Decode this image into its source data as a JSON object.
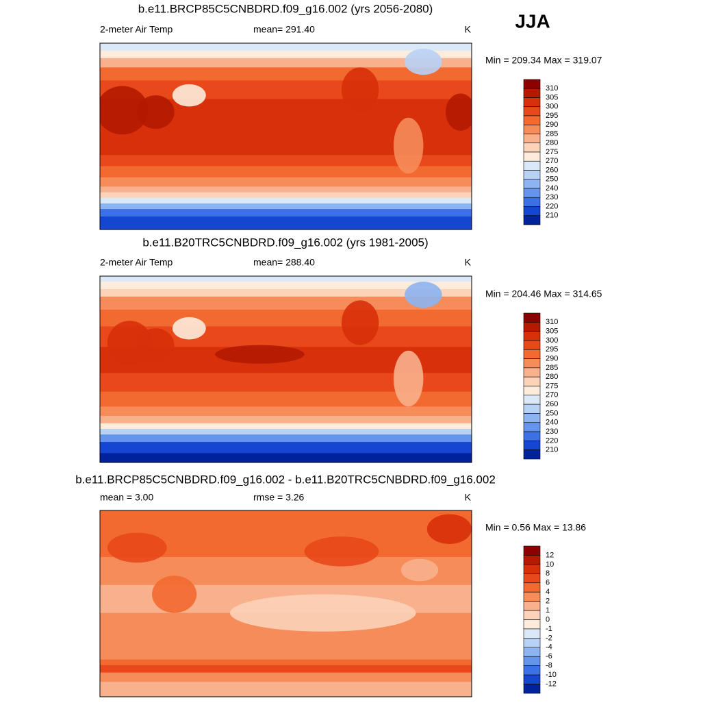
{
  "header": {
    "season": "JJA"
  },
  "panels": [
    {
      "title": "b.e11.BRCP85C5CNBDRD.f09_g16.002 (yrs 2056-2080)",
      "left": "2-meter Air Temp",
      "center": "mean= 291.40",
      "units": "K",
      "minmax": "Min = 209.34 Max = 319.07",
      "colorbar": {
        "labels": [
          310,
          305,
          300,
          295,
          290,
          285,
          280,
          275,
          270,
          260,
          250,
          240,
          230,
          220,
          210
        ],
        "colors": [
          "#8c0000",
          "#b41a00",
          "#d7300a",
          "#e8481a",
          "#f26a30",
          "#f68c5a",
          "#f9b08c",
          "#fcd2b8",
          "#fdecdc",
          "#dbe8f8",
          "#b8d2f5",
          "#8cb4f0",
          "#6494eb",
          "#3c70e6",
          "#1446d2",
          "#00229a"
        ]
      }
    },
    {
      "title": "b.e11.B20TRC5CNBDRD.f09_g16.002 (yrs 1981-2005)",
      "left": "2-meter Air Temp",
      "center": "mean= 288.40",
      "units": "K",
      "minmax": "Min = 204.46 Max = 314.65",
      "colorbar": {
        "labels": [
          310,
          305,
          300,
          295,
          290,
          285,
          280,
          275,
          270,
          260,
          250,
          240,
          230,
          220,
          210
        ],
        "colors": [
          "#8c0000",
          "#b41a00",
          "#d7300a",
          "#e8481a",
          "#f26a30",
          "#f68c5a",
          "#f9b08c",
          "#fcd2b8",
          "#fdecdc",
          "#dbe8f8",
          "#b8d2f5",
          "#8cb4f0",
          "#6494eb",
          "#3c70e6",
          "#1446d2",
          "#00229a"
        ]
      }
    },
    {
      "title": "b.e11.BRCP85C5CNBDRD.f09_g16.002 - b.e11.B20TRC5CNBDRD.f09_g16.002",
      "left": "mean =   3.00",
      "center": "rmse =   3.26",
      "units": "K",
      "minmax": "Min =   0.56 Max =  13.86",
      "colorbar": {
        "labels": [
          12,
          10,
          8,
          6,
          4,
          2,
          1,
          0,
          -1,
          -2,
          -4,
          -6,
          -8,
          -10,
          -12
        ],
        "colors": [
          "#8c0000",
          "#b41a00",
          "#d7300a",
          "#e8481a",
          "#f26a30",
          "#f68c5a",
          "#f9b08c",
          "#fcd2b8",
          "#fdecdc",
          "#dbe8f8",
          "#b8d2f5",
          "#8cb4f0",
          "#6494eb",
          "#3c70e6",
          "#1446d2",
          "#00229a"
        ]
      }
    }
  ]
}
